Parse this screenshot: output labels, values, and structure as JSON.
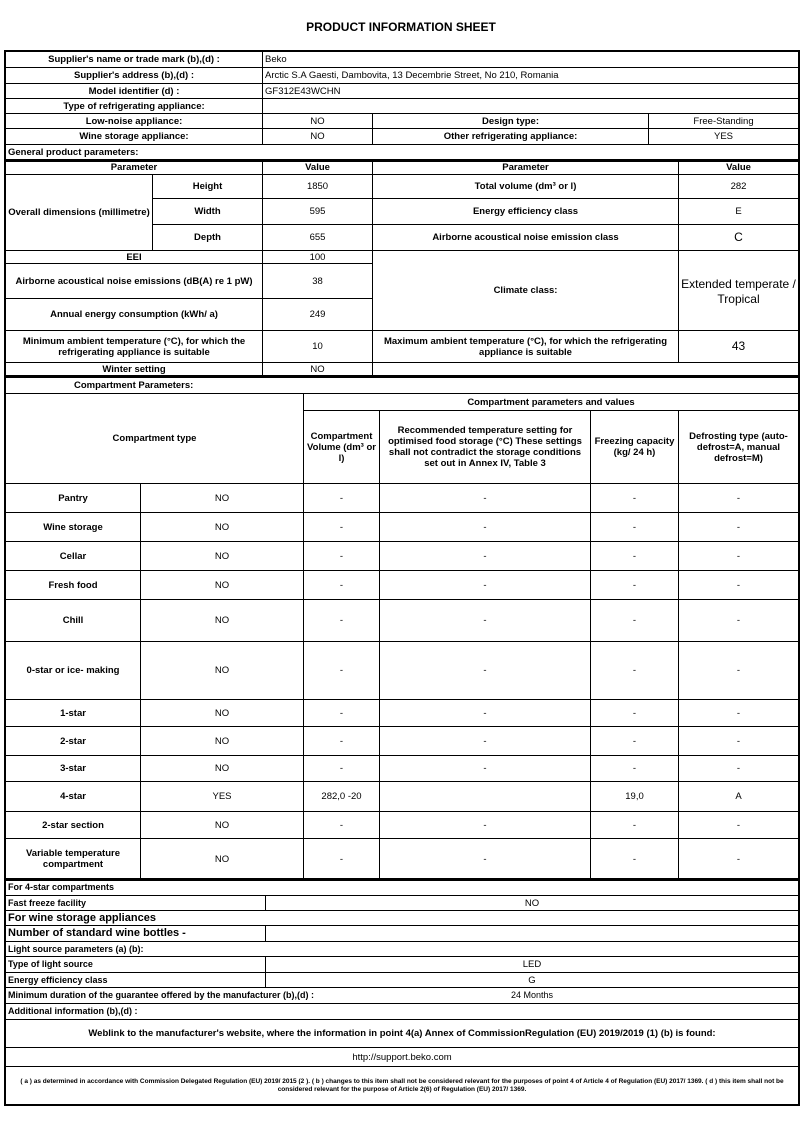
{
  "title": "PRODUCT INFORMATION SHEET",
  "supplier": {
    "name_label": "Supplier's name or trade mark (b),(d) :",
    "name_value": "Beko",
    "address_label": "Supplier's address (b),(d) :",
    "address_value": "Arctic S.A  Gaesti, Dambovita, 13 Decembrie Street, No 210, Romania",
    "model_label": "Model identifier (d) :",
    "model_value": "GF312E43WCHN",
    "type_label": "Type of refrigerating appliance:",
    "low_noise_label": "Low-noise appliance:",
    "low_noise_value": "NO",
    "design_label": "Design type:",
    "design_value": "Free-Standing",
    "wine_label": "Wine storage appliance:",
    "wine_value": "NO",
    "other_label": "Other refrigerating appliance:",
    "other_value": "YES"
  },
  "general": {
    "heading": "General product parameters:",
    "col_parameter": "Parameter",
    "col_value": "Value",
    "dims_label": "Overall dimensions (millimetre)",
    "height_label": "Height",
    "height_value": "1850",
    "width_label": "Width",
    "width_value": "595",
    "depth_label": "Depth",
    "depth_value": "655",
    "total_volume_label": "Total volume (dm³ or l)",
    "total_volume_value": "282",
    "energy_class_label": "Energy efficiency class",
    "energy_class_value": "E",
    "noise_class_label": "Airborne acoustical noise emission class",
    "noise_class_value": "C",
    "eei_label": "EEI",
    "eei_value": "100",
    "noise_label": "Airborne acoustical noise emissions (dB(A) re 1 pW)",
    "noise_value": "38",
    "annual_label": "Annual energy consumption (kWh/ a)",
    "annual_value": "249",
    "climate_label": "Climate class:",
    "climate_value": "Extended temperate / Tropical",
    "min_ambient_label": "Minimum ambient temperature (°C), for which the refrigerating appliance is suitable",
    "min_ambient_value": "10",
    "max_ambient_label": "Maximum ambient temperature (°C), for which the refrigerating appliance is suitable",
    "max_ambient_value": "43",
    "winter_label": "Winter setting",
    "winter_value": "NO"
  },
  "compartments": {
    "heading": "Compartment Parameters:",
    "type_header": "Compartment type",
    "values_header": "Compartment parameters and values",
    "col_volume": "Compartment Volume (dm³ or l)",
    "col_temp": "Recommended temperature setting for optimised food storage (°C) These settings shall not contradict the storage conditions set out in Annex IV, Table 3",
    "col_freezing": "Freezing capacity (kg/ 24 h)",
    "col_defrost": "Defrosting type (auto-defrost=A, manual defrost=M)",
    "rows": [
      {
        "name": "Pantry",
        "present": "NO",
        "volume": "-",
        "temp": "-",
        "freezing": "-",
        "defrost": "-"
      },
      {
        "name": "Wine storage",
        "present": "NO",
        "volume": "-",
        "temp": "-",
        "freezing": "-",
        "defrost": "-"
      },
      {
        "name": "Cellar",
        "present": "NO",
        "volume": "-",
        "temp": "-",
        "freezing": "-",
        "defrost": "-"
      },
      {
        "name": "Fresh food",
        "present": "NO",
        "volume": "-",
        "temp": "-",
        "freezing": "-",
        "defrost": "-"
      },
      {
        "name": "Chill",
        "present": "NO",
        "volume": "-",
        "temp": "-",
        "freezing": "-",
        "defrost": "-"
      },
      {
        "name": "0-star or ice- making",
        "present": "NO",
        "volume": "-",
        "temp": "-",
        "freezing": "-",
        "defrost": "-"
      },
      {
        "name": "1-star",
        "present": "NO",
        "volume": "-",
        "temp": "-",
        "freezing": "-",
        "defrost": "-"
      },
      {
        "name": "2-star",
        "present": "NO",
        "volume": "-",
        "temp": "-",
        "freezing": "-",
        "defrost": "-"
      },
      {
        "name": "3-star",
        "present": "NO",
        "volume": "-",
        "temp": "-",
        "freezing": "-",
        "defrost": "-"
      },
      {
        "name": "4-star",
        "present": "YES",
        "volume": "282,0 -20",
        "temp": "",
        "freezing": "19,0",
        "defrost": "A"
      },
      {
        "name": "2-star section",
        "present": "NO",
        "volume": "-",
        "temp": "-",
        "freezing": "-",
        "defrost": "-"
      },
      {
        "name": "Variable temperature compartment",
        "present": "NO",
        "volume": "-",
        "temp": "-",
        "freezing": "-",
        "defrost": "-"
      }
    ]
  },
  "four_star": {
    "heading": "For 4-star compartments",
    "fast_freeze_label": "Fast freeze facility",
    "fast_freeze_value": "NO"
  },
  "wine": {
    "heading": "For wine storage appliances",
    "bottles_label": "Number of standard wine bottles -",
    "bottles_value": ""
  },
  "light": {
    "heading": "Light source parameters (a) (b):",
    "type_label": "Type of light source",
    "type_value": "LED",
    "class_label": "Energy efficiency class",
    "class_value": "G"
  },
  "guarantee": {
    "label": "Minimum duration of the guarantee offered by the manufacturer (b),(d) :",
    "value": "24 Months"
  },
  "additional": {
    "label": "Additional information (b),(d) :"
  },
  "weblink": {
    "label": "Weblink to the manufacturer's website, where the information in point 4(a) Annex of CommissionRegulation (EU) 2019/2019 (1) (b) is found:",
    "url": "http://support.beko.com"
  },
  "footnote": "( a ) as determined in accordance with Commission Delegated Regulation (EU) 2019/ 2015 (2 ). ( b ) changes to this item shall not be considered relevant for the purposes of point 4 of Article 4 of Regulation (EU) 2017/ 1369. ( d ) this item shall not be considered relevant for the purpose of Article 2(6) of Regulation (EU) 2017/ 1369."
}
